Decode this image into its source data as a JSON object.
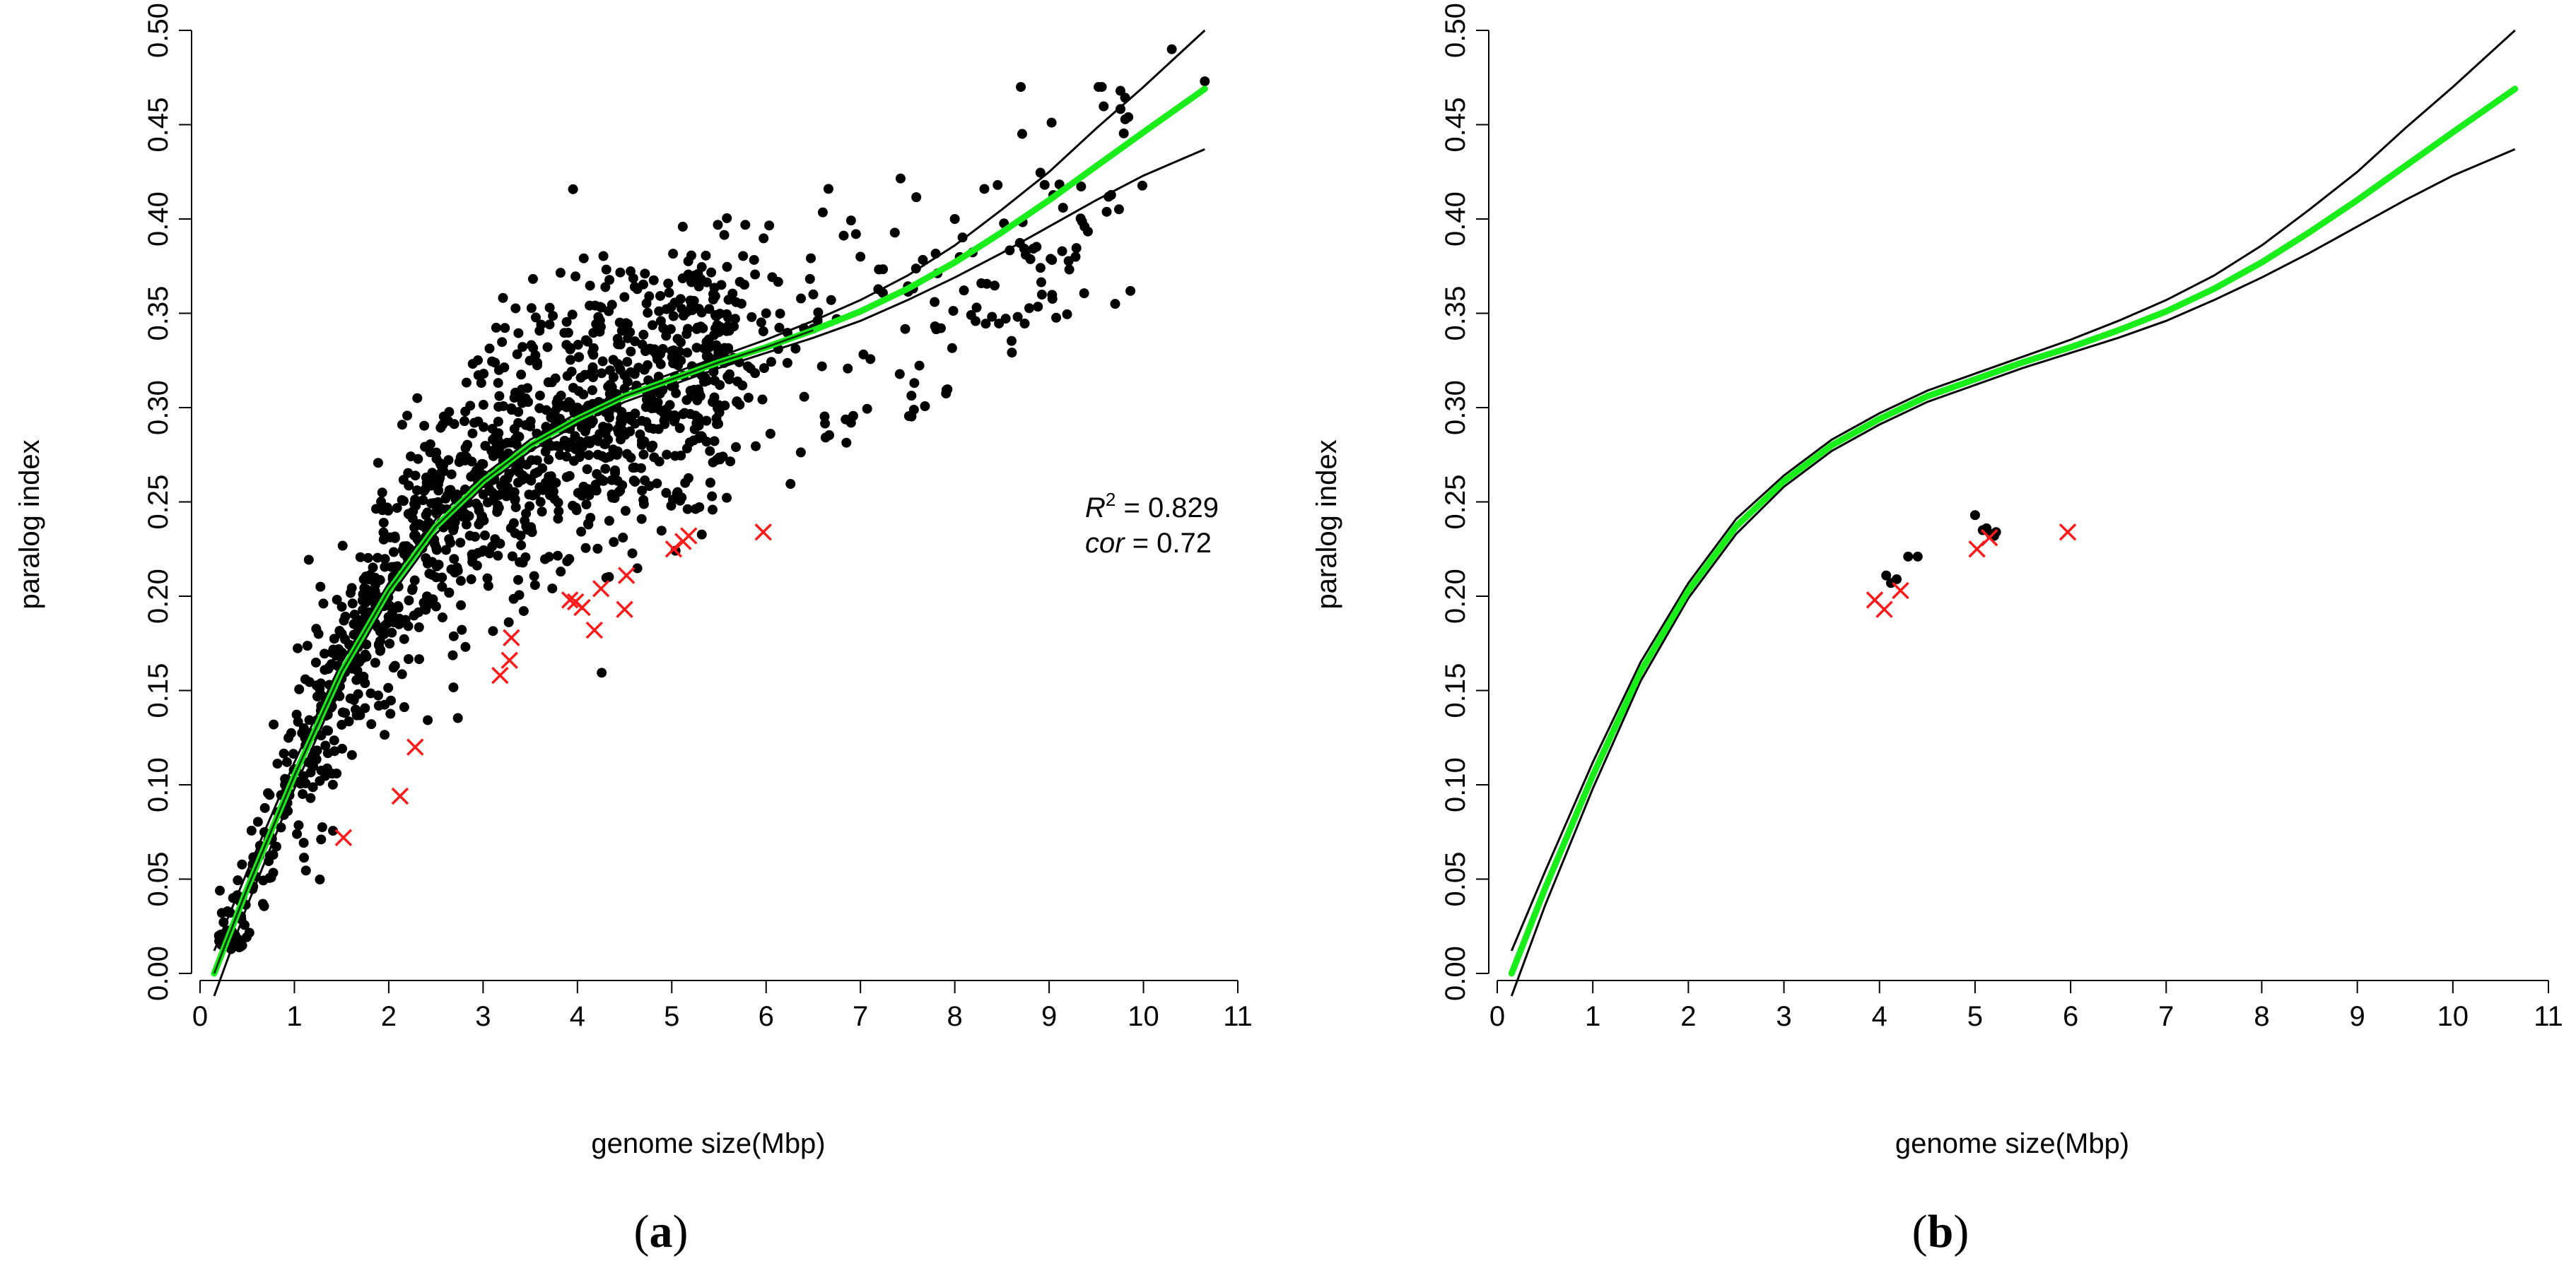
{
  "colors": {
    "points": "#000000",
    "outliers": "#ff1a1a",
    "fit": "#1aee1a",
    "ci": "#000000"
  },
  "panels": [
    {
      "label_open": "(",
      "label_letter": "a",
      "label_close": ")",
      "annotation": {
        "r2_symbol": "R",
        "r2_sup": "2",
        "r2_value": " = 0.829",
        "cor_symbol": "cor",
        "cor_value": " = 0.72"
      }
    },
    {
      "label_open": "(",
      "label_letter": "b",
      "label_close": ")"
    }
  ],
  "chart_data": [
    {
      "type": "scatter",
      "title": "",
      "xlabel": "genome size(Mbp)",
      "ylabel": "paralog index",
      "xlim": [
        0,
        11
      ],
      "ylim": [
        0,
        0.5
      ],
      "xticks": [
        "0",
        "1",
        "2",
        "3",
        "4",
        "5",
        "6",
        "7",
        "8",
        "9",
        "10",
        "11"
      ],
      "yticks": [
        "0.00",
        "0.05",
        "0.10",
        "0.15",
        "0.20",
        "0.25",
        "0.30",
        "0.35",
        "0.40",
        "0.45",
        "0.50"
      ],
      "fit": {
        "x": [
          0.15,
          0.5,
          1.0,
          1.5,
          2.0,
          2.5,
          3.0,
          3.5,
          4.0,
          4.5,
          5.0,
          5.5,
          6.0,
          6.5,
          7.0,
          7.5,
          8.0,
          8.5,
          9.0,
          9.5,
          10.0,
          10.65
        ],
        "y": [
          0.0,
          0.045,
          0.105,
          0.16,
          0.203,
          0.237,
          0.261,
          0.28,
          0.294,
          0.306,
          0.315,
          0.324,
          0.332,
          0.341,
          0.351,
          0.363,
          0.377,
          0.393,
          0.41,
          0.428,
          0.446,
          0.469
        ],
        "lower": [
          -0.012,
          0.036,
          0.098,
          0.155,
          0.199,
          0.233,
          0.258,
          0.277,
          0.291,
          0.303,
          0.312,
          0.321,
          0.329,
          0.337,
          0.346,
          0.357,
          0.369,
          0.382,
          0.396,
          0.41,
          0.423,
          0.437
        ],
        "upper": [
          0.012,
          0.054,
          0.112,
          0.165,
          0.207,
          0.241,
          0.264,
          0.283,
          0.297,
          0.309,
          0.318,
          0.327,
          0.336,
          0.346,
          0.357,
          0.37,
          0.386,
          0.405,
          0.425,
          0.448,
          0.47,
          0.5
        ]
      },
      "point_count": 1450,
      "points_sample": [
        [
          0.2,
          0.02
        ],
        [
          0.35,
          0.04
        ],
        [
          0.6,
          0.06
        ],
        [
          0.9,
          0.1
        ],
        [
          1.1,
          0.13
        ],
        [
          1.4,
          0.17
        ],
        [
          1.8,
          0.2
        ],
        [
          2.2,
          0.22
        ],
        [
          2.6,
          0.24
        ],
        [
          3.0,
          0.27
        ],
        [
          3.5,
          0.29
        ],
        [
          4.0,
          0.3
        ],
        [
          4.5,
          0.31
        ],
        [
          5.0,
          0.33
        ],
        [
          5.5,
          0.34
        ],
        [
          6.0,
          0.35
        ],
        [
          6.5,
          0.36
        ],
        [
          7.0,
          0.38
        ],
        [
          8.0,
          0.4
        ],
        [
          8.7,
          0.47
        ],
        [
          9.7,
          0.355
        ],
        [
          10.3,
          0.49
        ],
        [
          10.65,
          0.473
        ]
      ],
      "outliers": [
        [
          1.52,
          0.072
        ],
        [
          2.12,
          0.094
        ],
        [
          2.28,
          0.12
        ],
        [
          3.18,
          0.158
        ],
        [
          3.28,
          0.166
        ],
        [
          3.3,
          0.178
        ],
        [
          3.92,
          0.198
        ],
        [
          3.98,
          0.197
        ],
        [
          4.05,
          0.194
        ],
        [
          4.18,
          0.182
        ],
        [
          4.25,
          0.204
        ],
        [
          4.5,
          0.193
        ],
        [
          4.52,
          0.211
        ],
        [
          5.02,
          0.225
        ],
        [
          5.12,
          0.229
        ],
        [
          5.18,
          0.232
        ],
        [
          5.97,
          0.234
        ]
      ]
    },
    {
      "type": "scatter",
      "title": "",
      "xlabel": "genome size(Mbp)",
      "ylabel": "paralog index",
      "xlim": [
        0,
        11
      ],
      "ylim": [
        0,
        0.5
      ],
      "xticks": [
        "0",
        "1",
        "2",
        "3",
        "4",
        "5",
        "6",
        "7",
        "8",
        "9",
        "10",
        "11"
      ],
      "yticks": [
        "0.00",
        "0.05",
        "0.10",
        "0.15",
        "0.20",
        "0.25",
        "0.30",
        "0.35",
        "0.40",
        "0.45",
        "0.50"
      ],
      "fit": {
        "x": [
          0.15,
          0.5,
          1.0,
          1.5,
          2.0,
          2.5,
          3.0,
          3.5,
          4.0,
          4.5,
          5.0,
          5.5,
          6.0,
          6.5,
          7.0,
          7.5,
          8.0,
          8.5,
          9.0,
          9.5,
          10.0,
          10.65
        ],
        "y": [
          0.0,
          0.045,
          0.105,
          0.16,
          0.203,
          0.237,
          0.261,
          0.28,
          0.294,
          0.306,
          0.315,
          0.324,
          0.332,
          0.341,
          0.351,
          0.363,
          0.377,
          0.393,
          0.41,
          0.428,
          0.446,
          0.469
        ],
        "lower": [
          -0.012,
          0.036,
          0.098,
          0.155,
          0.199,
          0.233,
          0.258,
          0.277,
          0.291,
          0.303,
          0.312,
          0.321,
          0.329,
          0.337,
          0.346,
          0.357,
          0.369,
          0.382,
          0.396,
          0.41,
          0.423,
          0.437
        ],
        "upper": [
          0.012,
          0.054,
          0.112,
          0.165,
          0.207,
          0.241,
          0.264,
          0.283,
          0.297,
          0.309,
          0.318,
          0.327,
          0.336,
          0.346,
          0.357,
          0.37,
          0.386,
          0.405,
          0.425,
          0.448,
          0.47,
          0.5
        ]
      },
      "points": [
        [
          4.07,
          0.211
        ],
        [
          4.12,
          0.207
        ],
        [
          4.18,
          0.209
        ],
        [
          4.3,
          0.221
        ],
        [
          4.4,
          0.221
        ],
        [
          5.0,
          0.243
        ],
        [
          5.08,
          0.235
        ],
        [
          5.12,
          0.236
        ],
        [
          5.16,
          0.233
        ],
        [
          5.2,
          0.232
        ],
        [
          5.22,
          0.234
        ]
      ],
      "outliers": [
        [
          3.95,
          0.198
        ],
        [
          4.05,
          0.193
        ],
        [
          4.22,
          0.203
        ],
        [
          5.02,
          0.225
        ],
        [
          5.15,
          0.231
        ],
        [
          5.97,
          0.234
        ]
      ]
    }
  ]
}
